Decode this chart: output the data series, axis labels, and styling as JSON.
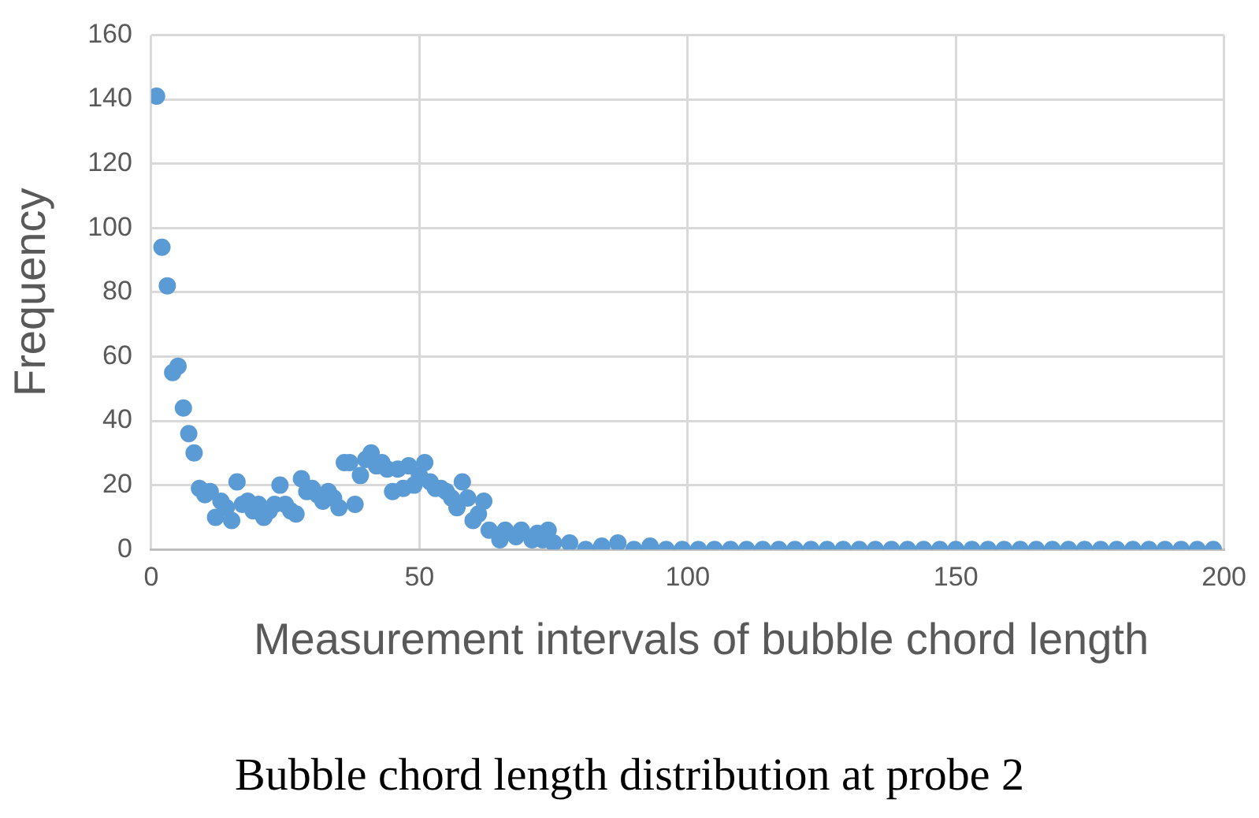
{
  "chart_data": {
    "type": "scatter",
    "xlabel": "Measurement intervals of bubble chord length",
    "ylabel": "Frequency",
    "annotations": [
      "Bubble chord length distribution at probe 2"
    ],
    "x": [
      1,
      2,
      3,
      4,
      5,
      6,
      7,
      8,
      9,
      10,
      11,
      12,
      13,
      14,
      15,
      16,
      17,
      18,
      19,
      20,
      21,
      22,
      23,
      24,
      25,
      26,
      27,
      28,
      29,
      30,
      31,
      32,
      33,
      34,
      35,
      36,
      37,
      38,
      39,
      40,
      41,
      42,
      43,
      44,
      45,
      46,
      47,
      48,
      49,
      50,
      51,
      52,
      53,
      54,
      55,
      56,
      57,
      58,
      59,
      60,
      61,
      62,
      63,
      65,
      66,
      68,
      69,
      71,
      72,
      73,
      74,
      75,
      78,
      81,
      84,
      87,
      90,
      93,
      96,
      99,
      102,
      105,
      108,
      111,
      114,
      117,
      120,
      123,
      126,
      129,
      132,
      135,
      138,
      141,
      144,
      147,
      150,
      153,
      156,
      159,
      162,
      165,
      168,
      171,
      174,
      177,
      180,
      183,
      186,
      189,
      192,
      195,
      198
    ],
    "series": [
      {
        "color": "#5b9bd5",
        "values": [
          141,
          94,
          82,
          55,
          57,
          44,
          36,
          30,
          19,
          17,
          18,
          10,
          15,
          13,
          9,
          21,
          14,
          15,
          12,
          14,
          10,
          12,
          14,
          20,
          14,
          12,
          11,
          22,
          18,
          19,
          17,
          15,
          18,
          16,
          13,
          27,
          27,
          14,
          23,
          28,
          30,
          26,
          27,
          25,
          18,
          25,
          19,
          26,
          20,
          23,
          27,
          21,
          19,
          19,
          18,
          16,
          13,
          21,
          16,
          9,
          11,
          15,
          6,
          3,
          6,
          4,
          6,
          3,
          5,
          3,
          6,
          2,
          2,
          0,
          1,
          2,
          0,
          1,
          0,
          0,
          0,
          0,
          0,
          0,
          0,
          0,
          0,
          0,
          0,
          0,
          0,
          0,
          0,
          0,
          0,
          0,
          0,
          0,
          0,
          0,
          0,
          0,
          0,
          0,
          0,
          0,
          0,
          0,
          0,
          0,
          0,
          0,
          0
        ]
      }
    ],
    "xlim": [
      0,
      200
    ],
    "xticks": [
      0,
      50,
      100,
      150,
      200
    ],
    "ylim": [
      0,
      160
    ],
    "yticks": [
      0,
      20,
      40,
      60,
      80,
      100,
      120,
      140,
      160
    ],
    "grid": true,
    "marker": "circle"
  }
}
